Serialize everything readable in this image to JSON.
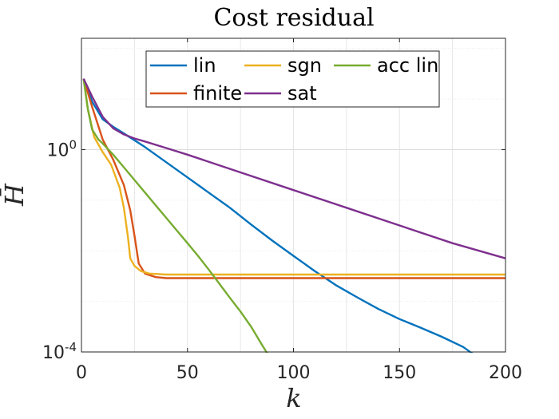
{
  "chart_data": {
    "type": "line",
    "title": "Cost residual",
    "xlabel": "k",
    "ylabel": "H̄",
    "xlim": [
      0,
      200
    ],
    "ylim_log10": [
      -4,
      2.2
    ],
    "yscale": "log",
    "grid": true,
    "legend_position": "top",
    "x_ticks": [
      {
        "value": 0,
        "label": "0"
      },
      {
        "value": 50,
        "label": "50"
      },
      {
        "value": 100,
        "label": "100"
      },
      {
        "value": 150,
        "label": "150"
      },
      {
        "value": 200,
        "label": "200"
      }
    ],
    "y_ticks": [
      {
        "value_log10": 0,
        "base": "10",
        "exp": "0"
      },
      {
        "value_log10": -4,
        "base": "10",
        "exp": "-4"
      }
    ],
    "series": [
      {
        "name": "lin",
        "color": "#0072BD",
        "x": [
          1,
          5,
          10,
          15,
          20,
          30,
          40,
          50,
          60,
          70,
          80,
          90,
          100,
          110,
          120,
          130,
          140,
          150,
          160,
          170,
          180,
          185
        ],
        "log10_y": [
          1.4,
          0.95,
          0.6,
          0.45,
          0.32,
          0.05,
          -0.25,
          -0.55,
          -0.85,
          -1.15,
          -1.48,
          -1.8,
          -2.1,
          -2.4,
          -2.68,
          -2.92,
          -3.15,
          -3.35,
          -3.52,
          -3.7,
          -3.9,
          -4.05
        ]
      },
      {
        "name": "finite",
        "color": "#D95319",
        "x": [
          1,
          5,
          10,
          15,
          20,
          23,
          25,
          27,
          30,
          35,
          40,
          60,
          100,
          150,
          200
        ],
        "log10_y": [
          1.4,
          0.85,
          0.2,
          -0.2,
          -0.7,
          -1.2,
          -1.7,
          -2.25,
          -2.45,
          -2.52,
          -2.54,
          -2.54,
          -2.54,
          -2.54,
          -2.54
        ]
      },
      {
        "name": "sgn",
        "color": "#EDB120",
        "x": [
          1,
          3,
          6,
          10,
          14,
          18,
          20,
          22,
          23,
          25,
          28,
          32,
          40,
          60,
          100,
          150,
          200
        ],
        "log10_y": [
          1.4,
          0.8,
          0.25,
          -0.05,
          -0.3,
          -0.75,
          -1.15,
          -1.75,
          -2.15,
          -2.3,
          -2.4,
          -2.45,
          -2.47,
          -2.47,
          -2.47,
          -2.47,
          -2.47
        ]
      },
      {
        "name": "acc lin",
        "color": "#77AC30",
        "x": [
          1,
          3,
          5,
          8,
          10,
          15,
          20,
          25,
          30,
          35,
          40,
          45,
          50,
          55,
          60,
          65,
          70,
          75,
          80,
          85,
          88
        ],
        "log10_y": [
          1.4,
          0.8,
          0.4,
          0.2,
          0.12,
          -0.1,
          -0.35,
          -0.6,
          -0.85,
          -1.1,
          -1.35,
          -1.6,
          -1.85,
          -2.1,
          -2.37,
          -2.65,
          -2.93,
          -3.2,
          -3.5,
          -3.85,
          -4.05
        ]
      },
      {
        "name": "sat",
        "color": "#7E2F8E",
        "x": [
          1,
          5,
          10,
          15,
          20,
          25,
          30,
          40,
          50,
          75,
          100,
          125,
          150,
          175,
          200
        ],
        "log10_y": [
          1.4,
          1.05,
          0.65,
          0.42,
          0.3,
          0.22,
          0.16,
          0.03,
          -0.1,
          -0.45,
          -0.8,
          -1.15,
          -1.5,
          -1.85,
          -2.15
        ]
      }
    ]
  }
}
